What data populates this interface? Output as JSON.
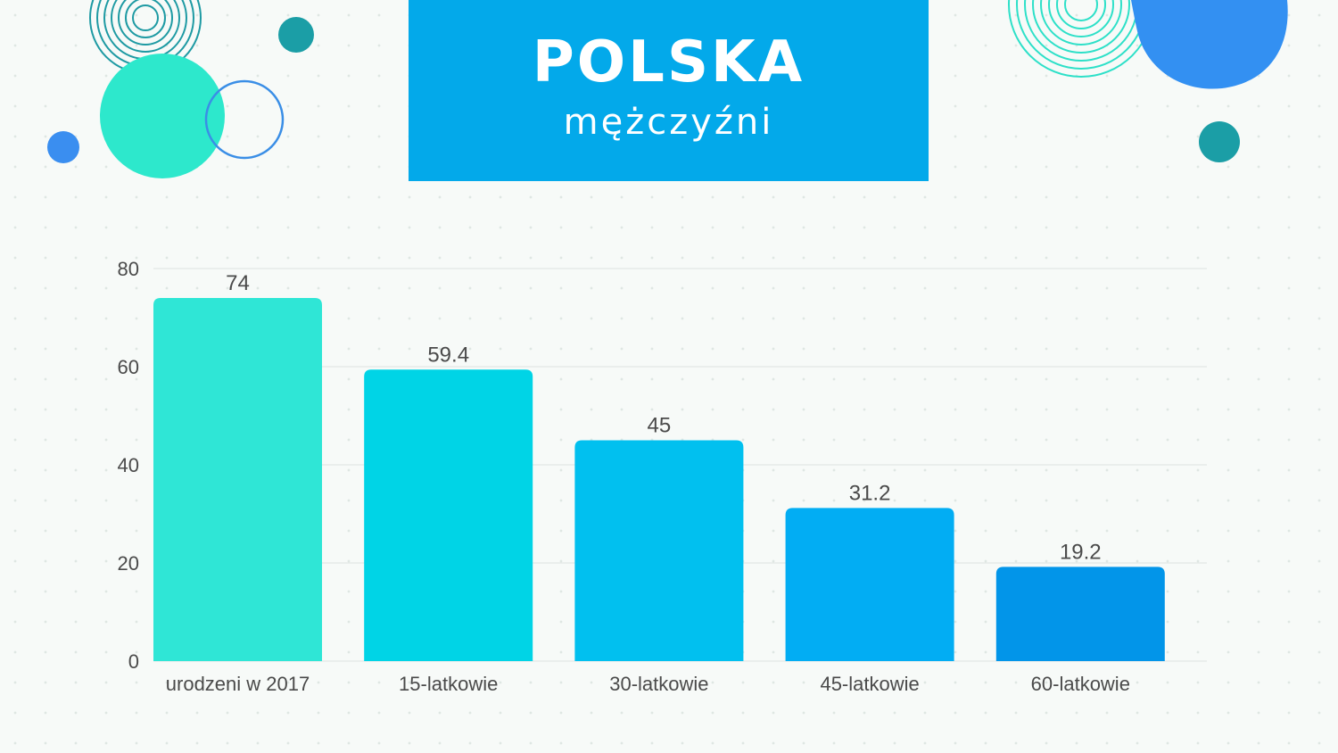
{
  "header": {
    "title": "POLSKA",
    "subtitle": "mężczyźni"
  },
  "colors": {
    "background": "#f7faf8",
    "title_box": "#03a9ea",
    "bar_colors": [
      "#2fe6d6",
      "#00d4e6",
      "#01c0ef",
      "#02adf3",
      "#0295e9"
    ],
    "label_text": "#4a4a4a",
    "grid": "#dde3e0"
  },
  "chart_data": {
    "type": "bar",
    "categories": [
      "urodzeni w 2017",
      "15-latkowie",
      "30-latkowie",
      "45-latkowie",
      "60-latkowie"
    ],
    "values": [
      74,
      59.4,
      45,
      31.2,
      19.2
    ],
    "title": "",
    "xlabel": "",
    "ylabel": "",
    "ylim": [
      0,
      80
    ],
    "yticks": [
      0,
      20,
      40,
      60,
      80
    ],
    "grid": true,
    "legend": "none",
    "data_labels": true
  }
}
